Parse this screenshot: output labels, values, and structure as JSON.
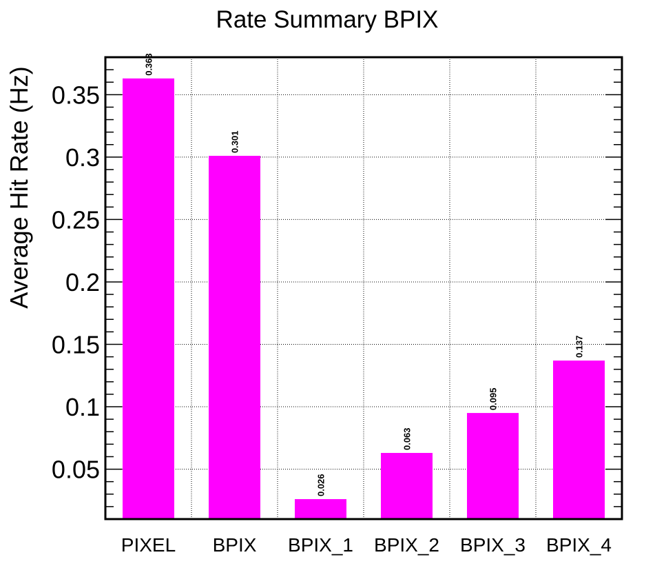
{
  "chart_data": {
    "type": "bar",
    "title": "Rate Summary BPIX",
    "xlabel": "",
    "ylabel": "Average Hit Rate (Hz)",
    "categories": [
      "PIXEL",
      "BPIX",
      "BPIX_1",
      "BPIX_2",
      "BPIX_3",
      "BPIX_4"
    ],
    "values": [
      0.363,
      0.301,
      0.026,
      0.063,
      0.095,
      0.137
    ],
    "value_labels": [
      "0.363",
      "0.301",
      "0.026",
      "0.063",
      "0.095",
      "0.137"
    ],
    "ylim": [
      0.01,
      0.38
    ],
    "yticks": [
      0.05,
      0.1,
      0.15,
      0.2,
      0.25,
      0.3,
      0.35
    ],
    "ytick_labels": [
      "0.05",
      "0.1",
      "0.15",
      "0.2",
      "0.25",
      "0.3",
      "0.35"
    ],
    "bar_color": "#ff00ff",
    "grid": true
  }
}
